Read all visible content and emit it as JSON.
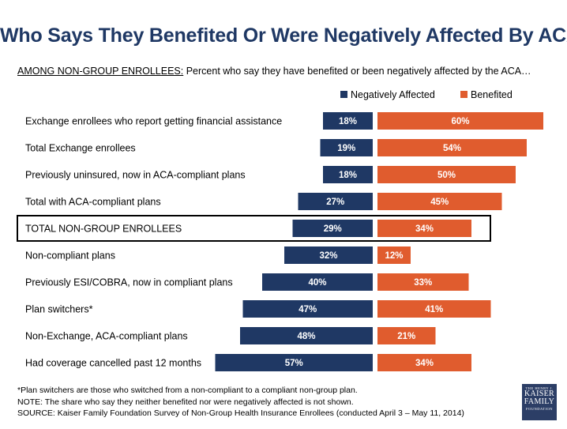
{
  "title": "Who Says They Benefited Or Were Negatively Affected By ACA?",
  "subtitle_lead": "AMONG NON-GROUP ENROLLEES:",
  "subtitle_rest": " Percent who say they have benefited or been negatively affected by the ACA…",
  "colors": {
    "negative": "#1f3864",
    "benefited": "#e05c2e",
    "title": "#1f3864"
  },
  "chart_data": {
    "type": "bar",
    "orientation": "horizontal-diverging",
    "categories": [
      "Exchange enrollees who report getting financial  assistance",
      "Total Exchange enrollees",
      "Previously uninsured, now in ACA-compliant plans",
      "Total with ACA-compliant plans",
      "TOTAL NON-GROUP ENROLLEES",
      "Non-compliant plans",
      "Previously ESI/COBRA, now in compliant  plans",
      "Plan switchers*",
      "Non-Exchange, ACA-compliant plans",
      "Had coverage cancelled past 12 months"
    ],
    "series": [
      {
        "name": "Negatively Affected",
        "values": [
          18,
          19,
          18,
          27,
          29,
          32,
          40,
          47,
          48,
          57
        ]
      },
      {
        "name": "Benefited",
        "values": [
          60,
          54,
          50,
          45,
          34,
          12,
          33,
          41,
          21,
          34
        ]
      }
    ],
    "value_suffix": "%",
    "highlighted_category": "TOTAL NON-GROUP ENROLLEES",
    "legend_position": "top-right",
    "grid": false
  },
  "footnotes": [
    "*Plan switchers are those who switched from a non-compliant to a compliant non-group plan.",
    "NOTE: The share who say they neither benefited nor were negatively affected is not shown.",
    "SOURCE: Kaiser Family Foundation Survey of Non-Group Health Insurance Enrollees (conducted April 3 – May 11, 2014)"
  ],
  "logo": {
    "top": "THE HENRY J.",
    "line1": "KAISER",
    "line2": "FAMILY",
    "bottom": "FOUNDATION"
  }
}
